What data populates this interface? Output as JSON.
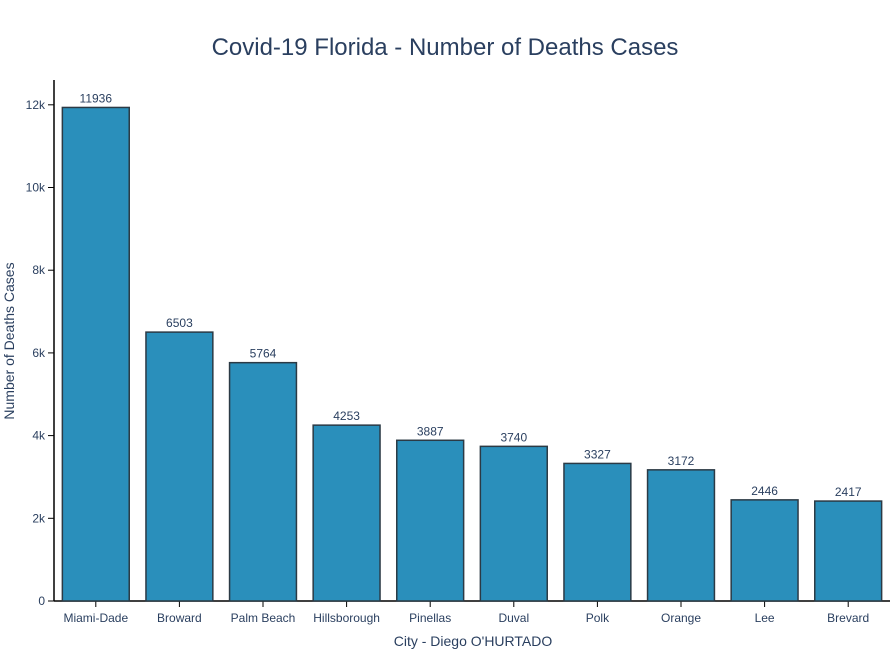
{
  "chart_data": {
    "type": "bar",
    "title": "Covid-19 Florida - Number of Deaths Cases",
    "xlabel": "City - Diego O'HURTADO",
    "ylabel": "Number of Deaths Cases",
    "categories": [
      "Miami-Dade",
      "Broward",
      "Palm Beach",
      "Hillsborough",
      "Pinellas",
      "Duval",
      "Polk",
      "Orange",
      "Lee",
      "Brevard"
    ],
    "values": [
      11936,
      6503,
      5764,
      4253,
      3887,
      3740,
      3327,
      3172,
      2446,
      2417
    ],
    "ylim": [
      0,
      12600
    ],
    "yticks": [
      0,
      2000,
      4000,
      6000,
      8000,
      10000,
      12000
    ],
    "ytick_labels": [
      "0",
      "2k",
      "4k",
      "6k",
      "8k",
      "10k",
      "12k"
    ],
    "grid": false,
    "colors": {
      "bar": "#2a8fbb",
      "bar_outline": "#2b3a45",
      "text": "#2a3f5f"
    }
  }
}
